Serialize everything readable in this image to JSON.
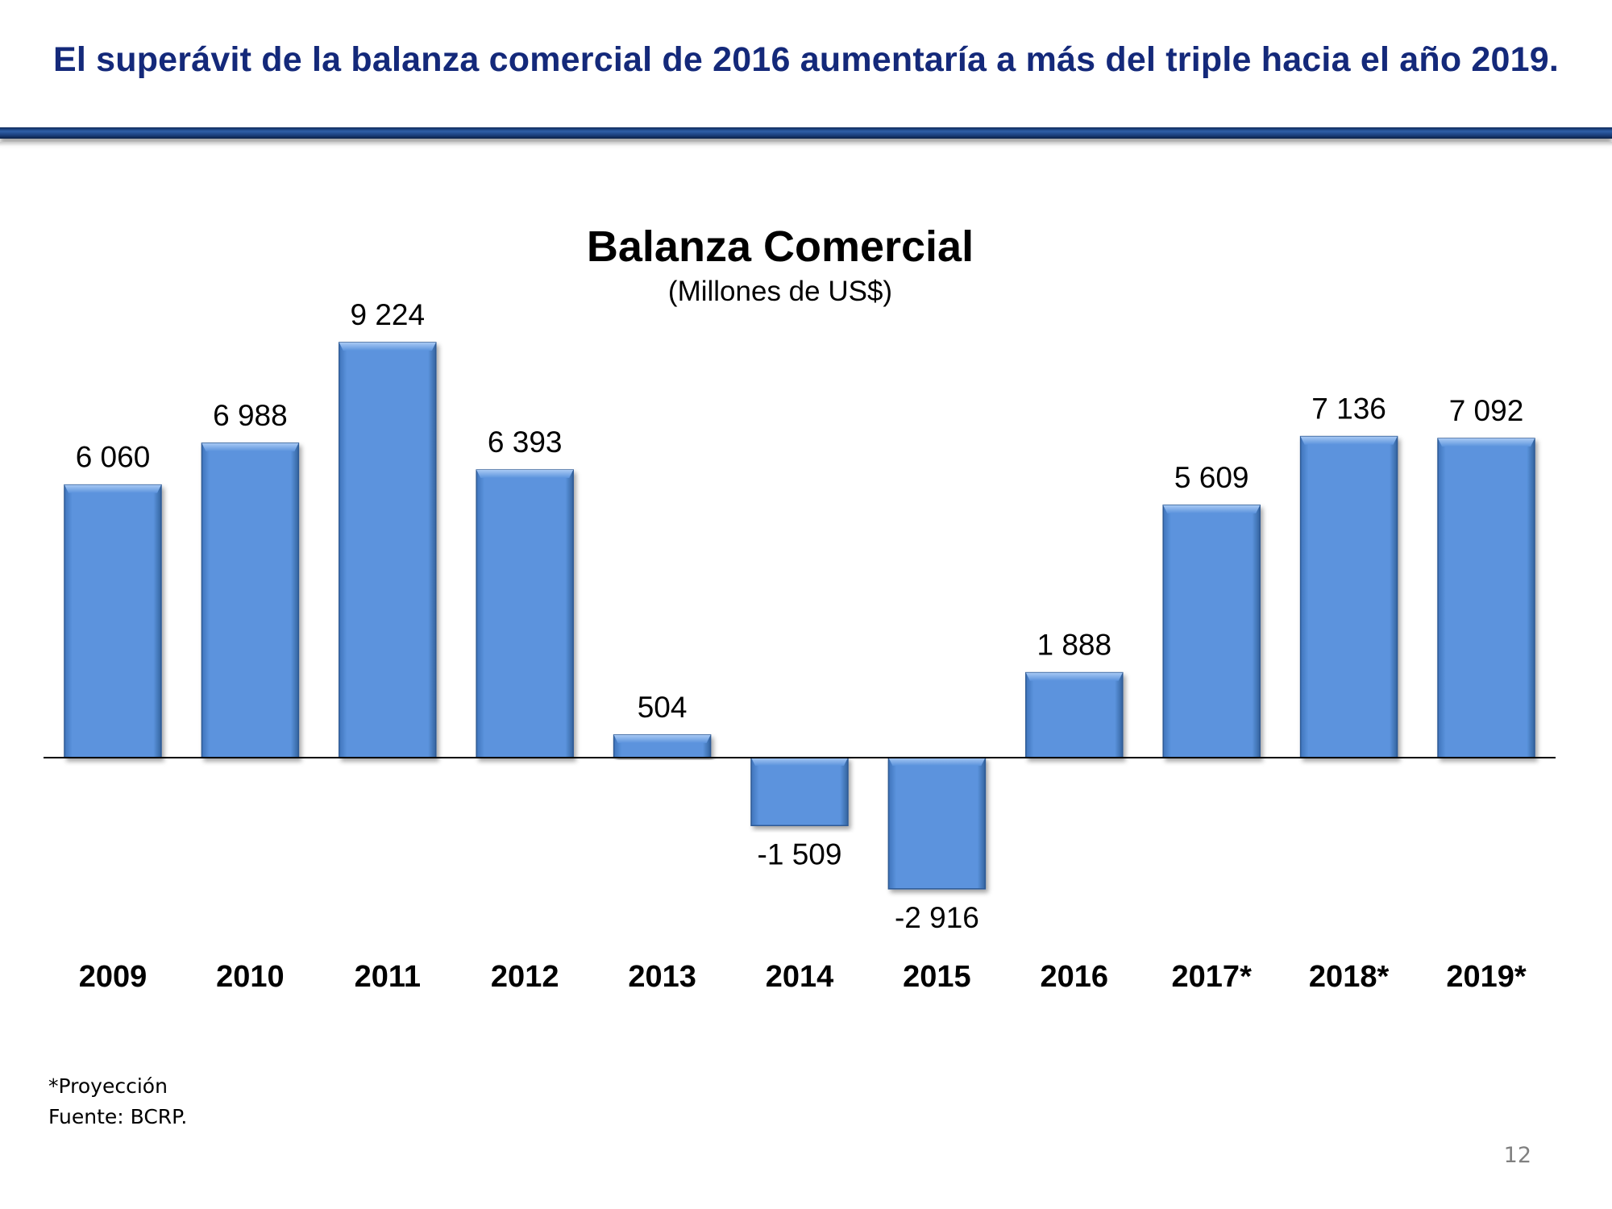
{
  "slide": {
    "title": "El superávit de la balanza comercial de 2016 aumentaría a más del triple hacia el año 2019.",
    "footnote": "*Proyección",
    "source": "Fuente: BCRP.",
    "page_number": "12"
  },
  "colors": {
    "title": "#14297a",
    "bar": "#5b93dd",
    "bar_light": "#7fb0ef",
    "bar_dark": "#2f5f9e"
  },
  "chart_data": {
    "type": "bar",
    "title": "Balanza Comercial",
    "subtitle": "(Millones de US$)",
    "categories": [
      "2009",
      "2010",
      "2011",
      "2012",
      "2013",
      "2014",
      "2015",
      "2016",
      "2017*",
      "2018*",
      "2019*"
    ],
    "values": [
      6060,
      6988,
      9224,
      6393,
      504,
      -1509,
      -2916,
      1888,
      5609,
      7136,
      7092
    ],
    "data_labels": [
      "6 060",
      "6 988",
      "9 224",
      "6 393",
      "504",
      "-1 509",
      "-2 916",
      "1 888",
      "5 609",
      "7 136",
      "7 092"
    ],
    "ylim": [
      -2916,
      9224
    ],
    "grid": false,
    "legend": "none"
  }
}
